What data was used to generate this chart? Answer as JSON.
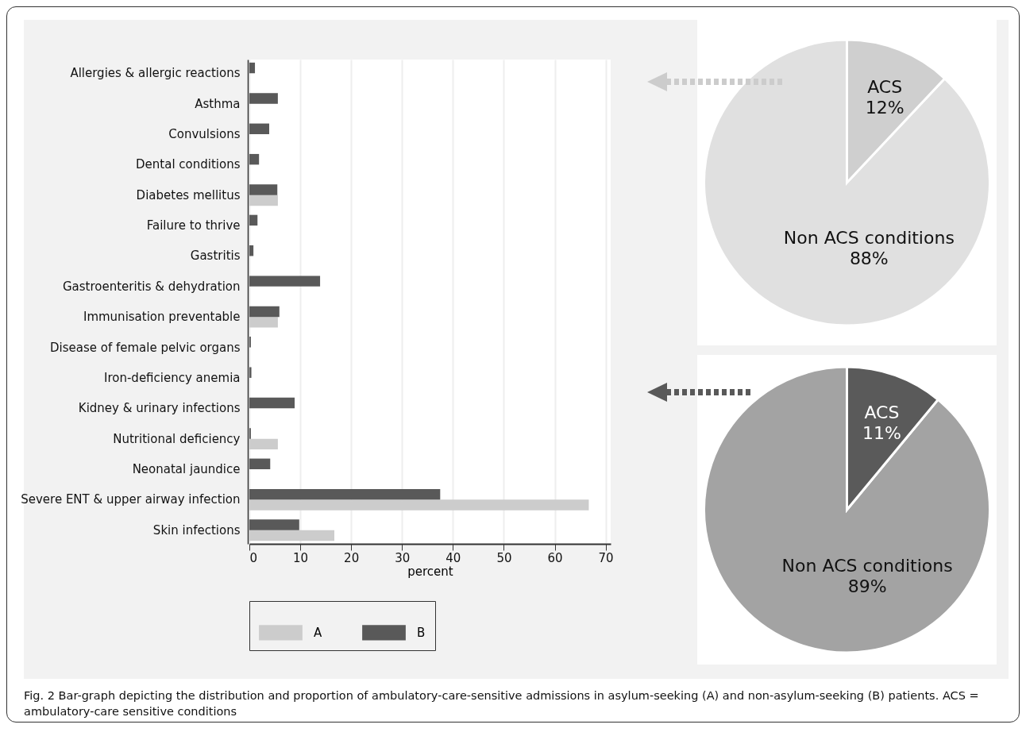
{
  "chart_data": [
    {
      "type": "bar",
      "orientation": "horizontal",
      "categories": [
        "Allergies & allergic reactions",
        "Asthma",
        "Convulsions",
        "Dental conditions",
        "Diabetes mellitus",
        "Failure to thrive",
        "Gastritis",
        "Gastroenteritis & dehydration",
        "Immunisation preventable",
        "Disease of female pelvic organs",
        "Iron-deficiency anemia",
        "Kidney & urinary infections",
        "Nutritional deficiency",
        "Neonatal jaundice",
        "Severe ENT & upper airway infection",
        "Skin infections"
      ],
      "series": [
        {
          "name": "A",
          "color": "#cccccc",
          "values": [
            0,
            0,
            0,
            0,
            5.6,
            0,
            0,
            0,
            5.6,
            0,
            0,
            0,
            5.6,
            0,
            66.7,
            16.7
          ]
        },
        {
          "name": "B",
          "color": "#595959",
          "values": [
            1.1,
            5.6,
            3.9,
            1.9,
            5.5,
            1.6,
            0.8,
            13.9,
            5.9,
            0.3,
            0.4,
            8.9,
            0.3,
            4.1,
            37.5,
            9.8
          ]
        }
      ],
      "xlabel": "percent",
      "xlim": [
        0,
        71
      ],
      "xticks": [
        0,
        10,
        20,
        30,
        40,
        50,
        60,
        70
      ],
      "grid": "x",
      "legend": "bottom",
      "annotations": [
        "Fig. 2 Bar-graph depicting the distribution and proportion of ambulatory-care-sensitive admissions in asylum-seeking (A) and non-asylum-seeking (B) patients. ACS = ambulatory-care sensitive conditions"
      ]
    },
    {
      "type": "pie",
      "categories": [
        "ACS",
        "Non ACS conditions"
      ],
      "values": [
        12,
        88
      ],
      "colors": [
        "#cfcfcf",
        "#e0e0e0"
      ],
      "value_labels": [
        "12%",
        "88%"
      ]
    },
    {
      "type": "pie",
      "categories": [
        "ACS",
        "Non ACS conditions"
      ],
      "values": [
        11,
        89
      ],
      "colors": [
        "#5a5a5a",
        "#a3a3a3"
      ],
      "value_labels": [
        "11%",
        "89%"
      ]
    }
  ]
}
